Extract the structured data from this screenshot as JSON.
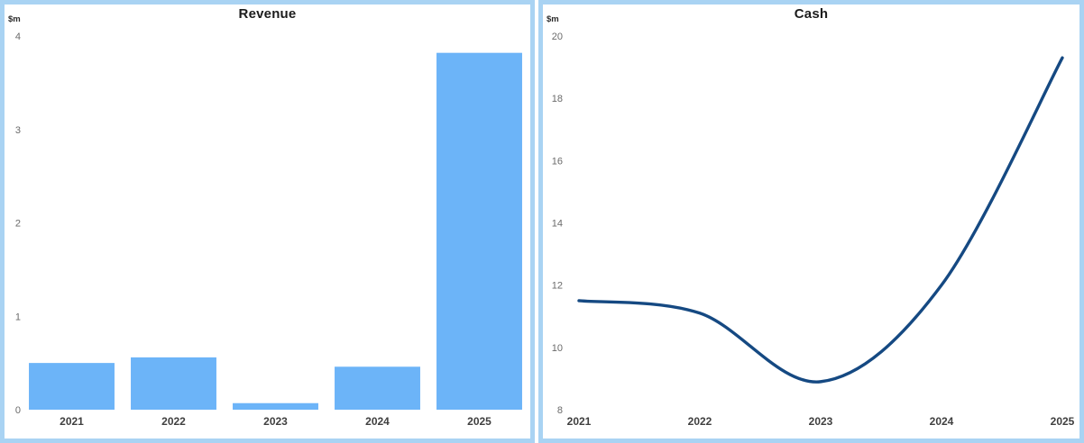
{
  "page": {
    "background": "#ffffff",
    "frame_color": "#A9D3F3"
  },
  "colors": {
    "bar_fill": "#6CB4F8",
    "line_stroke": "#154982",
    "title_text": "#1c1c1c",
    "axis_tick_text": "#6A6A6A",
    "category_tick_text": "#3F3F3F",
    "unit_text": "#2b2b2b"
  },
  "chart_data": [
    {
      "type": "bar",
      "title": "Revenue",
      "ylabel": "$m",
      "xlabel": "",
      "categories": [
        "2021",
        "2022",
        "2023",
        "2024",
        "2025"
      ],
      "values": [
        0.5,
        0.56,
        0.07,
        0.46,
        3.82
      ],
      "y_ticks": [
        0,
        1,
        2,
        3,
        4
      ],
      "ylim": [
        0,
        4
      ],
      "grid": false,
      "legend": "none"
    },
    {
      "type": "line",
      "title": "Cash",
      "ylabel": "$m",
      "xlabel": "",
      "categories": [
        "2021",
        "2022",
        "2023",
        "2024",
        "2025"
      ],
      "values": [
        11.5,
        11.1,
        8.9,
        12.0,
        19.3
      ],
      "y_ticks": [
        8,
        10,
        12,
        14,
        16,
        18,
        20
      ],
      "ylim": [
        8,
        20
      ],
      "grid": false,
      "legend": "none",
      "smooth": true
    }
  ]
}
